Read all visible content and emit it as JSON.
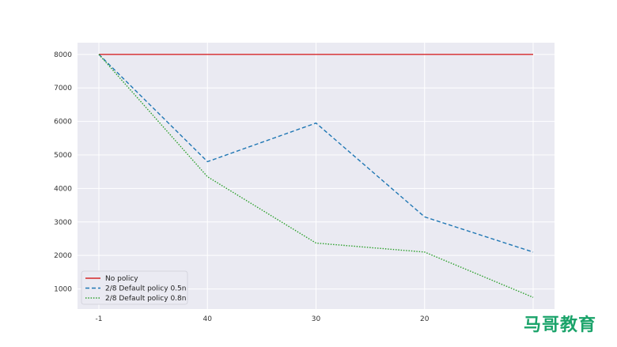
{
  "chart_data": {
    "type": "line",
    "categories": [
      "-1",
      "40",
      "30",
      "20",
      ""
    ],
    "yticks": [
      1000,
      2000,
      3000,
      4000,
      5000,
      6000,
      7000,
      8000
    ],
    "ylim": [
      400,
      8350
    ],
    "grid": true,
    "legend_position": "bottom-left",
    "series": [
      {
        "name": "No policy",
        "color": "#d62728",
        "style": "solid",
        "values": [
          8000,
          8000,
          8000,
          8000,
          8000
        ]
      },
      {
        "name": "2/8 Default policy 0.5n",
        "color": "#1f77b4",
        "style": "dashed",
        "values": [
          8000,
          4800,
          5950,
          3150,
          2100
        ]
      },
      {
        "name": "2/8 Default policy 0.8n",
        "color": "#2ca02c",
        "style": "dotted",
        "values": [
          8000,
          4350,
          2370,
          2100,
          750
        ]
      }
    ]
  },
  "watermark": {
    "text": "马哥教育",
    "color": "#1aa36a"
  }
}
